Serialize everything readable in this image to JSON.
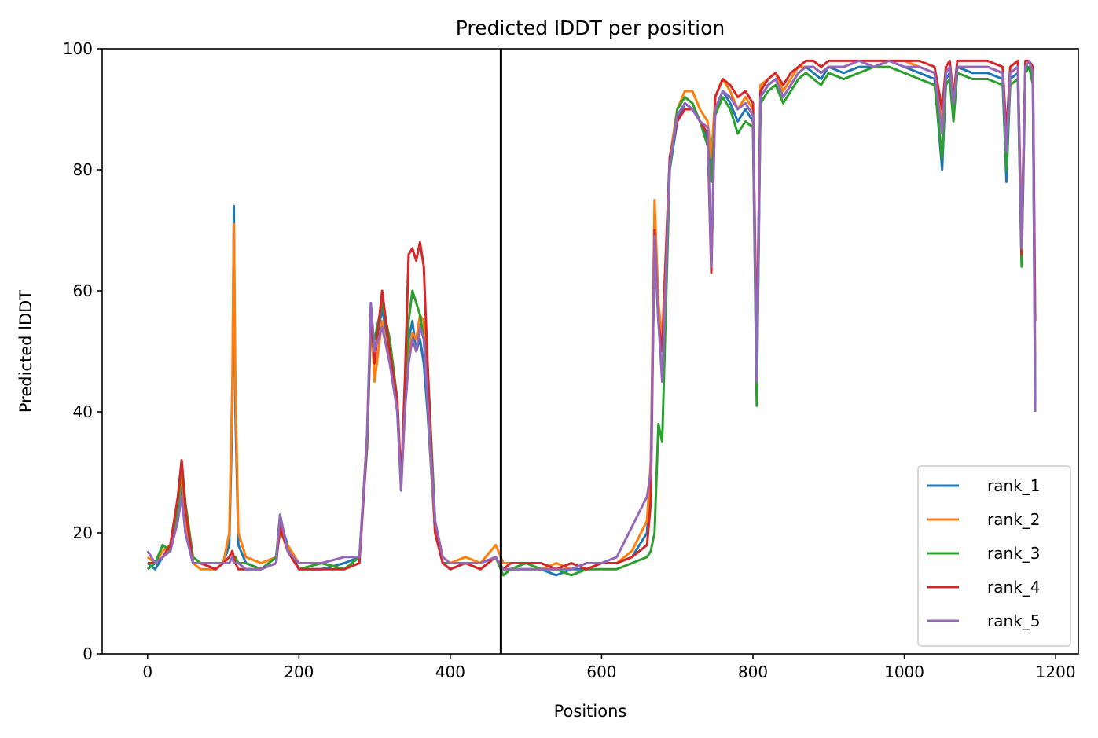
{
  "chart_data": {
    "type": "line",
    "title": "Predicted lDDT per position",
    "xlabel": "Positions",
    "ylabel": "Predicted lDDT",
    "xlim": [
      -60,
      1230
    ],
    "ylim": [
      0,
      100
    ],
    "xticks": [
      0,
      200,
      400,
      600,
      800,
      1000,
      1200
    ],
    "yticks": [
      0,
      20,
      40,
      60,
      80,
      100
    ],
    "grid": false,
    "legend_position": "lower-right",
    "vertical_line_x": 467,
    "series": [
      {
        "name": "rank_1",
        "color": "#1f77b4",
        "x": [
          0,
          10,
          20,
          30,
          40,
          45,
          50,
          60,
          70,
          90,
          100,
          108,
          112,
          114,
          116,
          120,
          130,
          150,
          170,
          175,
          185,
          200,
          230,
          260,
          280,
          290,
          295,
          300,
          310,
          320,
          330,
          335,
          340,
          345,
          350,
          355,
          360,
          365,
          370,
          380,
          390,
          400,
          420,
          440,
          460,
          470,
          480,
          500,
          520,
          540,
          560,
          580,
          600,
          620,
          640,
          660,
          665,
          670,
          675,
          680,
          690,
          700,
          710,
          720,
          730,
          740,
          745,
          750,
          760,
          770,
          780,
          790,
          800,
          805,
          810,
          820,
          830,
          840,
          850,
          860,
          870,
          880,
          890,
          900,
          920,
          940,
          960,
          980,
          1000,
          1020,
          1040,
          1050,
          1055,
          1060,
          1065,
          1070,
          1090,
          1110,
          1130,
          1135,
          1140,
          1150,
          1155,
          1160,
          1165,
          1170,
          1173
        ],
        "y": [
          15,
          14,
          16,
          17,
          22,
          28,
          20,
          15,
          15,
          14,
          15,
          18,
          40,
          74,
          40,
          18,
          15,
          14,
          16,
          22,
          18,
          14,
          14,
          15,
          16,
          35,
          55,
          50,
          57,
          50,
          40,
          28,
          40,
          52,
          55,
          50,
          52,
          48,
          40,
          20,
          15,
          14,
          15,
          15,
          16,
          14,
          14,
          14,
          14,
          13,
          14,
          14,
          15,
          15,
          16,
          20,
          30,
          68,
          55,
          50,
          80,
          88,
          91,
          90,
          88,
          85,
          80,
          90,
          93,
          91,
          88,
          90,
          88,
          43,
          92,
          94,
          95,
          92,
          94,
          96,
          97,
          96,
          95,
          97,
          96,
          97,
          97,
          98,
          97,
          96,
          95,
          80,
          95,
          96,
          90,
          97,
          96,
          96,
          95,
          78,
          95,
          96,
          65,
          97,
          97,
          95,
          42
        ]
      },
      {
        "name": "rank_2",
        "color": "#ff7f0e",
        "x": [
          0,
          10,
          20,
          30,
          40,
          45,
          50,
          60,
          70,
          90,
          100,
          108,
          112,
          114,
          116,
          120,
          130,
          150,
          170,
          175,
          185,
          200,
          230,
          260,
          280,
          290,
          295,
          300,
          310,
          320,
          330,
          335,
          340,
          345,
          350,
          355,
          360,
          365,
          370,
          380,
          390,
          400,
          420,
          440,
          460,
          470,
          480,
          500,
          520,
          540,
          560,
          580,
          600,
          620,
          640,
          660,
          665,
          670,
          675,
          680,
          690,
          700,
          710,
          720,
          730,
          740,
          745,
          750,
          760,
          770,
          780,
          790,
          800,
          805,
          810,
          820,
          830,
          840,
          850,
          860,
          870,
          880,
          890,
          900,
          920,
          940,
          960,
          980,
          1000,
          1020,
          1040,
          1050,
          1055,
          1060,
          1065,
          1070,
          1090,
          1110,
          1130,
          1135,
          1140,
          1150,
          1155,
          1160,
          1165,
          1170,
          1173
        ],
        "y": [
          16,
          15,
          17,
          18,
          24,
          30,
          22,
          15,
          14,
          14,
          15,
          20,
          45,
          71,
          45,
          20,
          16,
          15,
          16,
          20,
          18,
          15,
          15,
          14,
          16,
          36,
          56,
          45,
          55,
          48,
          42,
          29,
          42,
          50,
          53,
          52,
          56,
          55,
          42,
          20,
          15,
          15,
          16,
          15,
          18,
          15,
          15,
          15,
          14,
          15,
          14,
          15,
          15,
          15,
          17,
          22,
          32,
          75,
          58,
          52,
          82,
          90,
          93,
          93,
          90,
          88,
          82,
          92,
          95,
          93,
          90,
          92,
          90,
          48,
          94,
          95,
          96,
          93,
          95,
          97,
          97,
          97,
          96,
          97,
          97,
          98,
          97,
          98,
          98,
          97,
          96,
          88,
          96,
          97,
          93,
          97,
          97,
          97,
          96,
          84,
          96,
          97,
          70,
          97,
          98,
          96,
          48
        ]
      },
      {
        "name": "rank_3",
        "color": "#2ca02c",
        "x": [
          0,
          10,
          20,
          30,
          40,
          45,
          50,
          60,
          70,
          90,
          100,
          108,
          112,
          114,
          116,
          120,
          130,
          150,
          170,
          175,
          185,
          200,
          230,
          260,
          280,
          290,
          295,
          300,
          310,
          320,
          330,
          335,
          340,
          345,
          350,
          355,
          360,
          365,
          370,
          380,
          390,
          400,
          420,
          440,
          460,
          470,
          480,
          500,
          520,
          540,
          560,
          580,
          600,
          620,
          640,
          660,
          665,
          670,
          675,
          680,
          690,
          700,
          710,
          720,
          730,
          740,
          745,
          750,
          760,
          770,
          780,
          790,
          800,
          805,
          810,
          820,
          830,
          840,
          850,
          860,
          870,
          880,
          890,
          900,
          920,
          940,
          960,
          980,
          1000,
          1020,
          1040,
          1050,
          1055,
          1060,
          1065,
          1070,
          1090,
          1110,
          1130,
          1135,
          1140,
          1150,
          1155,
          1160,
          1165,
          1170,
          1173
        ],
        "y": [
          14,
          15,
          18,
          17,
          24,
          32,
          25,
          16,
          15,
          14,
          15,
          16,
          17,
          16,
          16,
          15,
          15,
          14,
          16,
          23,
          17,
          14,
          15,
          14,
          16,
          34,
          54,
          52,
          58,
          52,
          42,
          27,
          42,
          55,
          60,
          58,
          56,
          52,
          48,
          22,
          15,
          15,
          15,
          14,
          16,
          13,
          14,
          15,
          14,
          14,
          13,
          14,
          14,
          14,
          15,
          16,
          17,
          20,
          38,
          35,
          80,
          90,
          92,
          91,
          88,
          84,
          78,
          89,
          92,
          90,
          86,
          88,
          87,
          41,
          91,
          93,
          94,
          91,
          93,
          95,
          96,
          95,
          94,
          96,
          95,
          96,
          97,
          97,
          96,
          95,
          94,
          82,
          94,
          95,
          88,
          96,
          95,
          95,
          94,
          80,
          94,
          95,
          64,
          96,
          97,
          94,
          41
        ]
      },
      {
        "name": "rank_4",
        "color": "#d62728",
        "x": [
          0,
          10,
          20,
          30,
          40,
          45,
          50,
          60,
          70,
          90,
          100,
          108,
          112,
          114,
          116,
          120,
          130,
          150,
          170,
          175,
          185,
          200,
          230,
          260,
          280,
          290,
          295,
          300,
          310,
          320,
          330,
          335,
          340,
          345,
          350,
          355,
          360,
          365,
          370,
          380,
          390,
          400,
          420,
          440,
          460,
          470,
          480,
          500,
          520,
          540,
          560,
          580,
          600,
          620,
          640,
          660,
          665,
          670,
          675,
          680,
          690,
          700,
          710,
          720,
          730,
          740,
          745,
          750,
          760,
          770,
          780,
          790,
          800,
          805,
          810,
          820,
          830,
          840,
          850,
          860,
          870,
          880,
          890,
          900,
          920,
          940,
          960,
          980,
          1000,
          1020,
          1040,
          1050,
          1055,
          1060,
          1065,
          1070,
          1090,
          1110,
          1130,
          1135,
          1140,
          1150,
          1155,
          1160,
          1165,
          1170,
          1173
        ],
        "y": [
          15,
          15,
          16,
          18,
          26,
          32,
          24,
          15,
          15,
          14,
          15,
          16,
          17,
          16,
          15,
          14,
          14,
          14,
          15,
          21,
          17,
          14,
          14,
          14,
          15,
          35,
          57,
          48,
          60,
          50,
          42,
          28,
          45,
          66,
          67,
          65,
          68,
          64,
          48,
          20,
          15,
          14,
          15,
          14,
          16,
          14,
          15,
          15,
          15,
          14,
          15,
          14,
          15,
          15,
          16,
          18,
          25,
          70,
          55,
          50,
          82,
          88,
          90,
          90,
          88,
          86,
          63,
          92,
          95,
          94,
          92,
          93,
          91,
          50,
          93,
          95,
          96,
          94,
          96,
          97,
          98,
          98,
          97,
          98,
          98,
          98,
          98,
          98,
          98,
          98,
          97,
          90,
          97,
          98,
          92,
          98,
          98,
          98,
          97,
          86,
          97,
          98,
          66,
          98,
          98,
          97,
          55
        ]
      },
      {
        "name": "rank_5",
        "color": "#9467bd",
        "x": [
          0,
          10,
          20,
          30,
          40,
          45,
          50,
          60,
          70,
          90,
          100,
          108,
          112,
          114,
          116,
          120,
          130,
          150,
          170,
          175,
          185,
          200,
          230,
          260,
          280,
          290,
          295,
          300,
          310,
          320,
          330,
          335,
          340,
          345,
          350,
          355,
          360,
          365,
          370,
          380,
          390,
          400,
          420,
          440,
          460,
          470,
          480,
          500,
          520,
          540,
          560,
          580,
          600,
          620,
          640,
          660,
          665,
          670,
          675,
          680,
          690,
          700,
          710,
          720,
          730,
          740,
          745,
          750,
          760,
          770,
          780,
          790,
          800,
          805,
          810,
          820,
          830,
          840,
          850,
          860,
          870,
          880,
          890,
          900,
          920,
          940,
          960,
          980,
          1000,
          1020,
          1040,
          1050,
          1055,
          1060,
          1065,
          1070,
          1090,
          1110,
          1130,
          1135,
          1140,
          1150,
          1155,
          1160,
          1165,
          1170,
          1173
        ],
        "y": [
          17,
          15,
          16,
          17,
          22,
          26,
          20,
          15,
          15,
          15,
          15,
          15,
          16,
          15,
          15,
          15,
          14,
          14,
          15,
          23,
          17,
          15,
          15,
          16,
          16,
          36,
          58,
          50,
          54,
          48,
          40,
          27,
          40,
          48,
          52,
          50,
          54,
          52,
          42,
          22,
          16,
          15,
          15,
          15,
          16,
          14,
          14,
          14,
          14,
          14,
          14,
          15,
          15,
          16,
          21,
          26,
          30,
          69,
          55,
          45,
          81,
          89,
          91,
          90,
          88,
          87,
          64,
          90,
          93,
          92,
          90,
          91,
          89,
          45,
          92,
          94,
          95,
          92,
          94,
          96,
          97,
          97,
          96,
          97,
          97,
          98,
          97,
          98,
          97,
          97,
          96,
          86,
          96,
          97,
          91,
          97,
          97,
          97,
          96,
          83,
          96,
          97,
          67,
          97,
          98,
          96,
          40
        ]
      }
    ]
  }
}
